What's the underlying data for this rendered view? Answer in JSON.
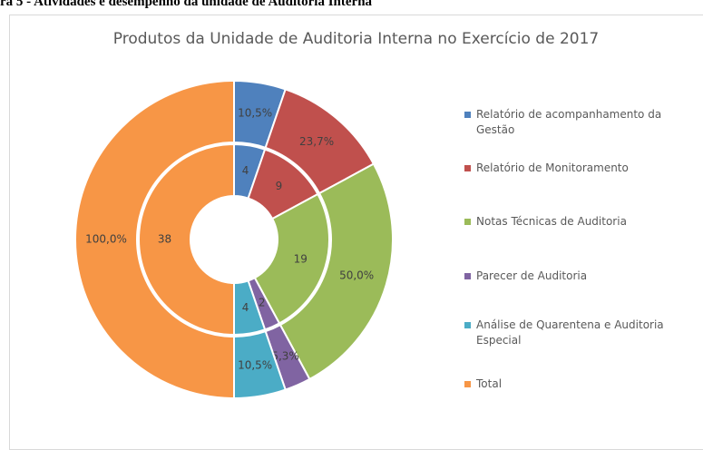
{
  "caption": "ra 5 - Atividades e desempenho da unidade de Auditoria Interna",
  "chart_data": {
    "type": "doughnut",
    "title": "Produtos da Unidade de Auditoria Interna no Exercício de 2017",
    "categories": [
      "Relatório de acompanhamento da Gestão",
      "Relatório de Monitoramento",
      "Notas Técnicas de Auditoria",
      "Parecer de Auditoria",
      "Análise de Quarentena e Auditoria Especial",
      "Total"
    ],
    "colors": [
      "#4f81bd",
      "#c0504d",
      "#9bbb59",
      "#8064a2",
      "#4bacc6",
      "#f79646"
    ],
    "series": [
      {
        "values": [
          4,
          9,
          19,
          2,
          4,
          38
        ]
      },
      {
        "values": [
          10.5,
          23.7,
          50.0,
          5.3,
          10.5,
          100.0
        ],
        "value_labels": [
          "10,5%",
          "23,7%",
          "50,0%",
          "5,3%",
          "10,5%",
          "100,0%"
        ]
      }
    ],
    "legend": "right"
  }
}
